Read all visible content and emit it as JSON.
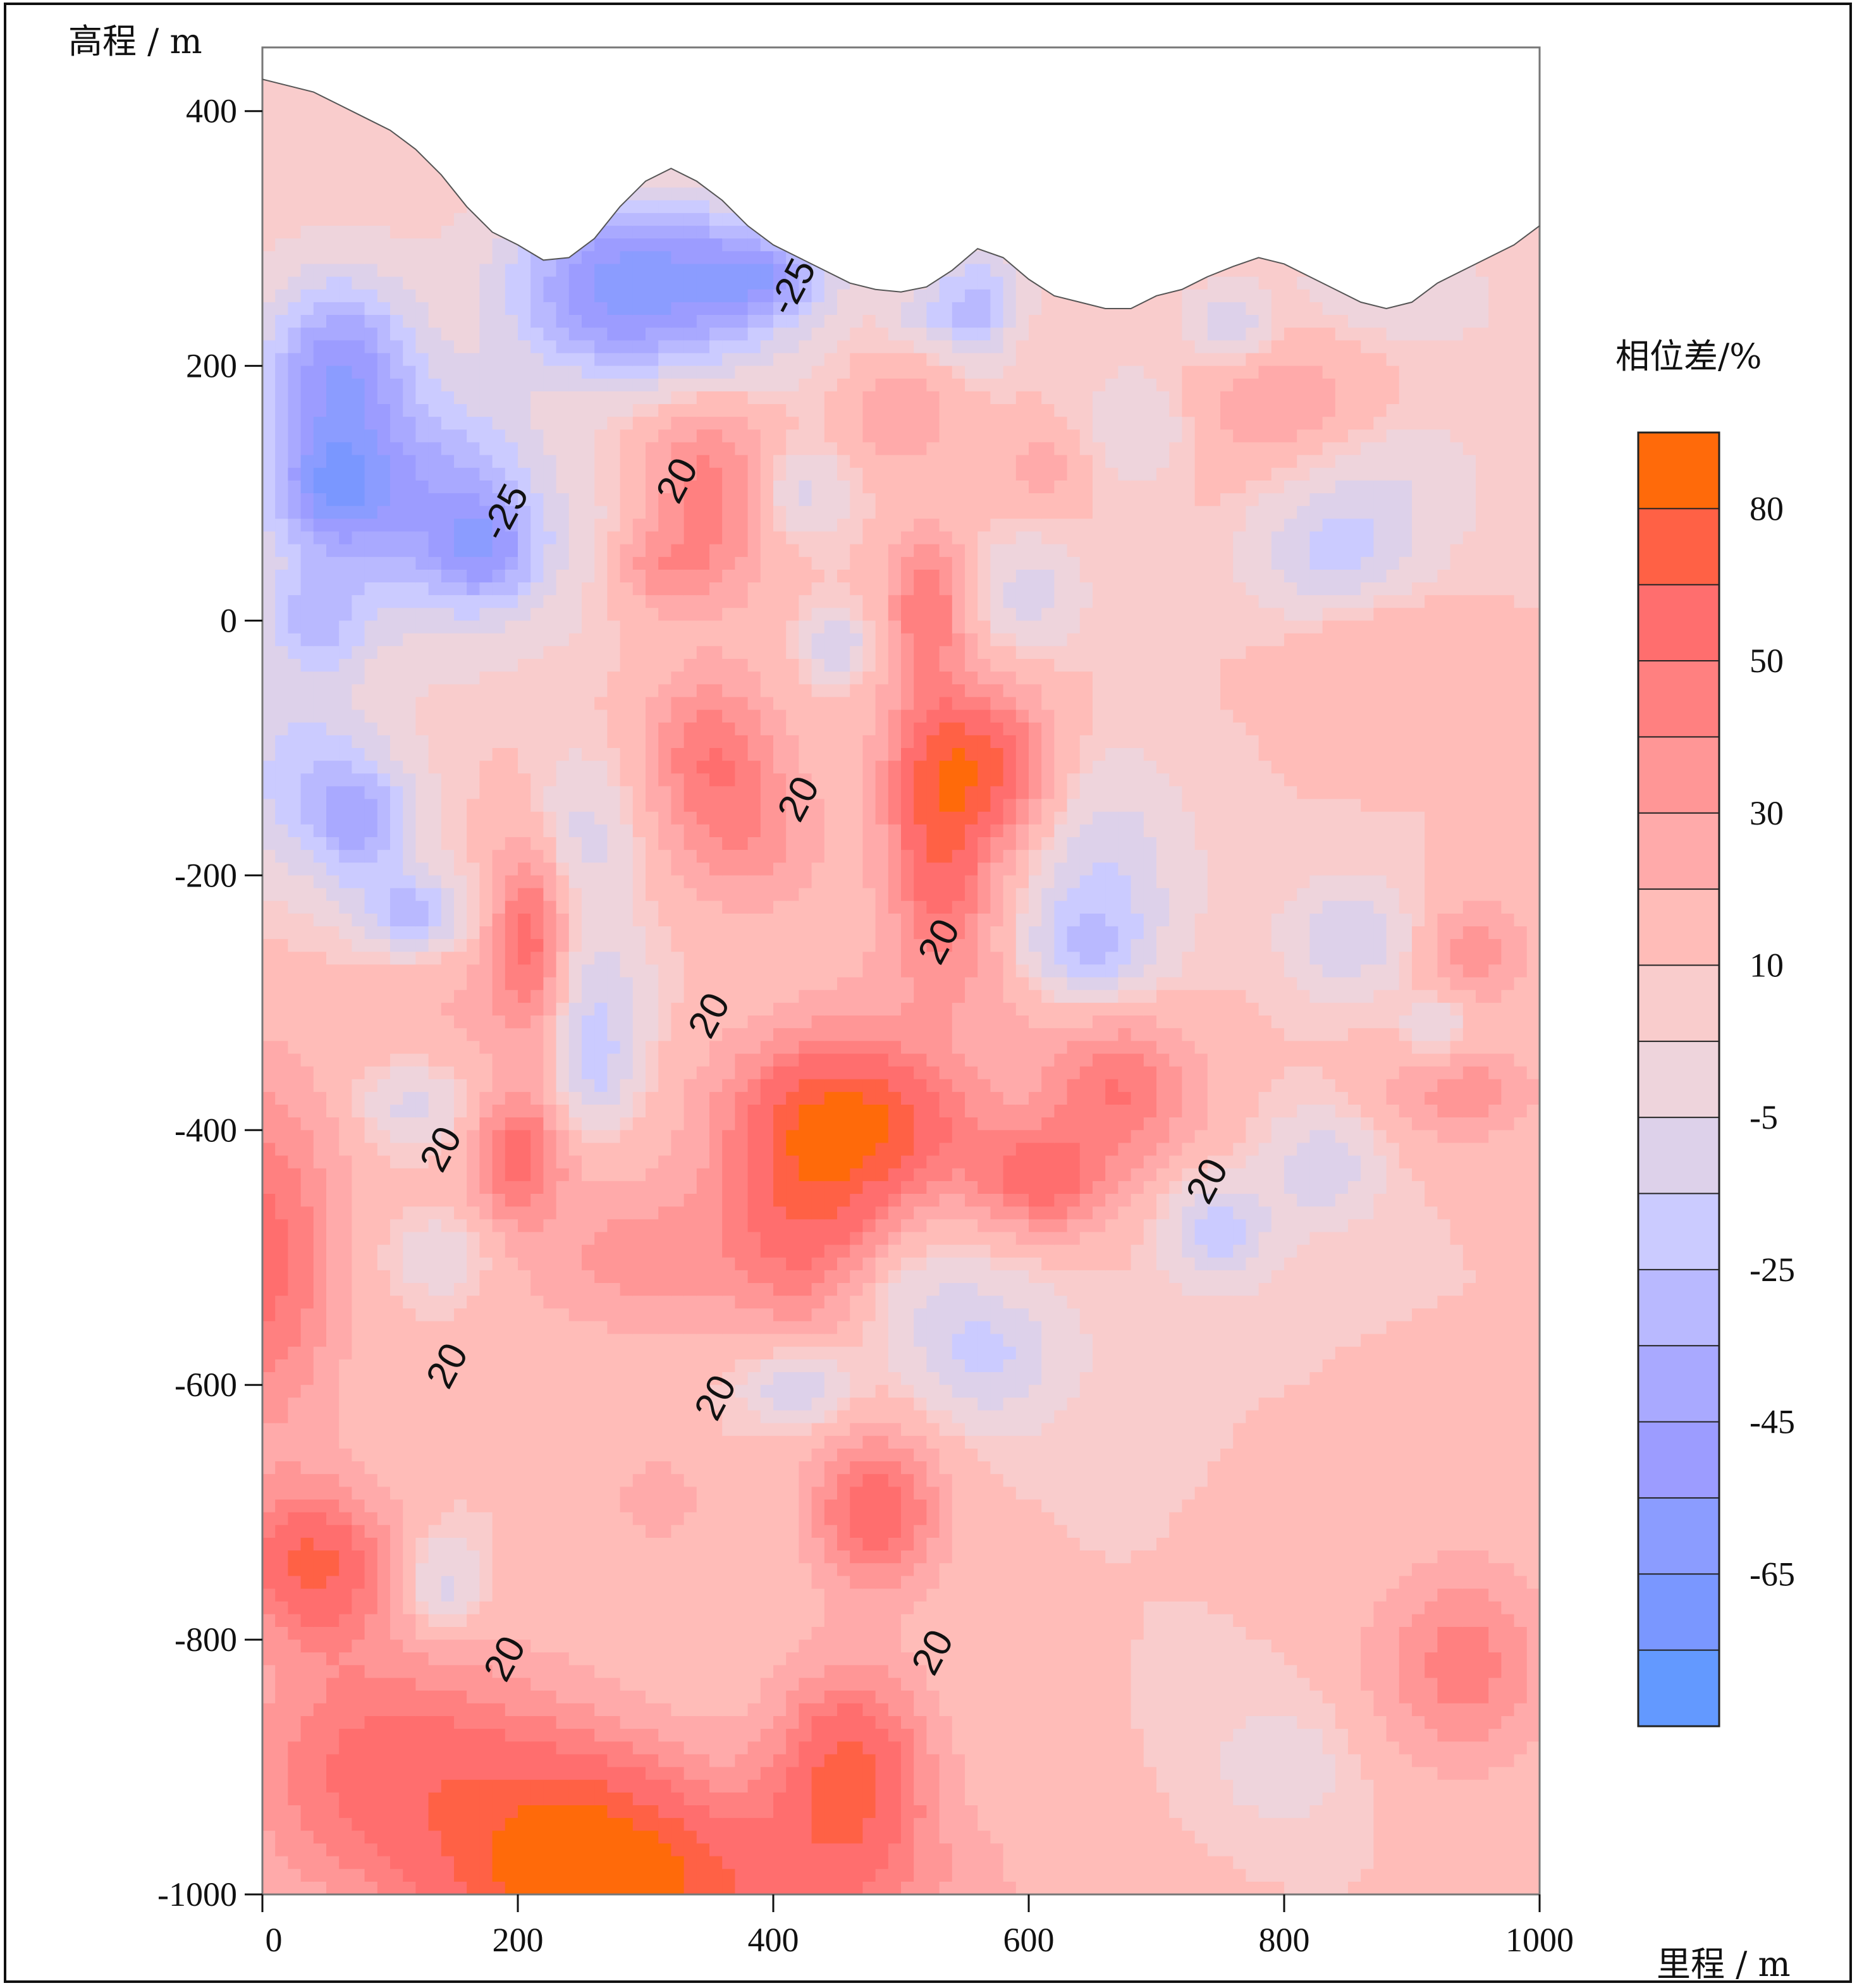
{
  "chart_data": {
    "type": "heatmap",
    "subtype": "filled-contour",
    "title": "",
    "xlabel": "里程 / m",
    "ylabel": "高程 / m",
    "xlim": [
      0,
      1000
    ],
    "ylim": [
      -1000,
      450
    ],
    "x_ticks": [
      0,
      200,
      400,
      600,
      800,
      1000
    ],
    "y_ticks": [
      400,
      200,
      0,
      -200,
      -400,
      -600,
      -800,
      -1000
    ],
    "grid": false,
    "colorbar": {
      "title": "相位差/%",
      "position": "right",
      "levels": [
        95,
        80,
        65,
        50,
        40,
        30,
        20,
        10,
        5,
        -5,
        -15,
        -25,
        -35,
        -45,
        -55,
        -65,
        -75
      ],
      "bands": [
        {
          "color": "#ff6a0a"
        },
        {
          "color": "#ff6145"
        },
        {
          "color": "#ff6e6e"
        },
        {
          "color": "#ff8080"
        },
        {
          "color": "#ff9696"
        },
        {
          "color": "#ffaaaa"
        },
        {
          "color": "#ffbcb8"
        },
        {
          "color": "#f9cccc"
        },
        {
          "color": "#eed4dc"
        },
        {
          "color": "#ddd1ea"
        },
        {
          "color": "#cbcbff"
        },
        {
          "color": "#b9b9ff"
        },
        {
          "color": "#a9a9ff"
        },
        {
          "color": "#9c9cff"
        },
        {
          "color": "#8b9cff"
        },
        {
          "color": "#7a97ff"
        },
        {
          "color": "#6399ff"
        }
      ],
      "tick_labels": [
        "80",
        "50",
        "30",
        "10",
        "-5",
        "-25",
        "-45",
        "-65"
      ]
    },
    "contour_labels": [
      {
        "text": "-25",
        "x": 415,
        "y": 262
      },
      {
        "text": "20",
        "x": 325,
        "y": 110
      },
      {
        "text": "-25",
        "x": 190,
        "y": 85
      },
      {
        "text": "20",
        "x": 420,
        "y": -140
      },
      {
        "text": "20",
        "x": 530,
        "y": -252
      },
      {
        "text": "20",
        "x": 350,
        "y": -310
      },
      {
        "text": "20",
        "x": 140,
        "y": -415
      },
      {
        "text": "20",
        "x": 740,
        "y": -440
      },
      {
        "text": "20",
        "x": 145,
        "y": -585
      },
      {
        "text": "20",
        "x": 355,
        "y": -610
      },
      {
        "text": "20",
        "x": 190,
        "y": -815
      },
      {
        "text": "20",
        "x": 525,
        "y": -810
      }
    ],
    "field": {
      "background": 10,
      "sources": [
        [
          60,
          200,
          -60,
          60,
          70
        ],
        [
          270,
          245,
          -55,
          80,
          55
        ],
        [
          360,
          240,
          -30,
          70,
          60
        ],
        [
          130,
          60,
          -30,
          110,
          80
        ],
        [
          175,
          55,
          -35,
          40,
          40
        ],
        [
          50,
          110,
          -35,
          60,
          60
        ],
        [
          300,
          300,
          -35,
          100,
          40
        ],
        [
          150,
          120,
          -25,
          70,
          70
        ],
        [
          380,
          270,
          -25,
          40,
          30
        ],
        [
          420,
          270,
          -22,
          40,
          30
        ],
        [
          560,
          270,
          -25,
          40,
          30
        ],
        [
          710,
          230,
          -5,
          80,
          60
        ],
        [
          880,
          250,
          -10,
          100,
          50
        ],
        [
          40,
          0,
          -30,
          40,
          40
        ],
        [
          30,
          -120,
          -30,
          60,
          80
        ],
        [
          80,
          -160,
          -40,
          40,
          50
        ],
        [
          120,
          -230,
          -40,
          40,
          30
        ],
        [
          120,
          -380,
          -20,
          40,
          30
        ],
        [
          260,
          -300,
          -25,
          40,
          60
        ],
        [
          260,
          -360,
          -20,
          30,
          40
        ],
        [
          250,
          -170,
          -20,
          40,
          60
        ],
        [
          450,
          -20,
          -25,
          25,
          25
        ],
        [
          420,
          100,
          -20,
          35,
          35
        ],
        [
          600,
          20,
          -20,
          40,
          40
        ],
        [
          660,
          -200,
          -25,
          60,
          80
        ],
        [
          640,
          -260,
          -30,
          50,
          40
        ],
        [
          850,
          -250,
          -25,
          45,
          40
        ],
        [
          840,
          50,
          -25,
          60,
          50
        ],
        [
          750,
          -480,
          -30,
          40,
          40
        ],
        [
          830,
          -430,
          -25,
          40,
          40
        ],
        [
          570,
          -580,
          -25,
          60,
          50
        ],
        [
          420,
          -600,
          -30,
          40,
          30
        ],
        [
          920,
          -320,
          -20,
          25,
          25
        ],
        [
          140,
          -500,
          -15,
          40,
          30
        ],
        [
          870,
          110,
          -15,
          80,
          60
        ],
        [
          500,
          -530,
          -15,
          80,
          50
        ],
        [
          760,
          230,
          -25,
          25,
          25
        ],
        [
          560,
          230,
          -30,
          25,
          30
        ],
        [
          520,
          240,
          -20,
          30,
          25
        ],
        [
          690,
          150,
          -15,
          40,
          40
        ],
        [
          350,
          100,
          35,
          50,
          80
        ],
        [
          310,
          40,
          20,
          40,
          30
        ],
        [
          540,
          -110,
          55,
          50,
          60
        ],
        [
          530,
          -190,
          45,
          40,
          70
        ],
        [
          520,
          10,
          40,
          30,
          60
        ],
        [
          350,
          -100,
          35,
          50,
          60
        ],
        [
          380,
          -170,
          25,
          60,
          60
        ],
        [
          210,
          -250,
          45,
          30,
          80
        ],
        [
          200,
          -420,
          45,
          35,
          50
        ],
        [
          450,
          -390,
          55,
          90,
          70
        ],
        [
          430,
          -480,
          40,
          60,
          90
        ],
        [
          610,
          -440,
          45,
          50,
          40
        ],
        [
          670,
          -370,
          40,
          60,
          60
        ],
        [
          500,
          -400,
          20,
          80,
          50
        ],
        [
          550,
          -280,
          15,
          80,
          60
        ],
        [
          40,
          -740,
          55,
          60,
          60
        ],
        [
          0,
          -500,
          45,
          60,
          140
        ],
        [
          100,
          -900,
          45,
          120,
          100
        ],
        [
          250,
          -980,
          60,
          100,
          100
        ],
        [
          460,
          -900,
          55,
          60,
          80
        ],
        [
          480,
          -700,
          50,
          50,
          60
        ],
        [
          350,
          -1000,
          40,
          200,
          80
        ],
        [
          940,
          -820,
          35,
          70,
          80
        ],
        [
          950,
          -260,
          25,
          40,
          40
        ],
        [
          940,
          -370,
          25,
          60,
          40
        ],
        [
          800,
          170,
          20,
          80,
          60
        ],
        [
          870,
          -20,
          12,
          60,
          50
        ],
        [
          310,
          -690,
          15,
          40,
          40
        ],
        [
          300,
          -500,
          25,
          100,
          60
        ],
        [
          150,
          -300,
          10,
          60,
          60
        ],
        [
          500,
          160,
          20,
          40,
          40
        ],
        [
          610,
          120,
          15,
          30,
          30
        ],
        [
          140,
          -760,
          -25,
          30,
          40
        ],
        [
          800,
          -900,
          -10,
          60,
          50
        ],
        [
          60,
          100,
          -20,
          40,
          40
        ],
        [
          590,
          -120,
          25,
          40,
          60
        ]
      ]
    }
  }
}
